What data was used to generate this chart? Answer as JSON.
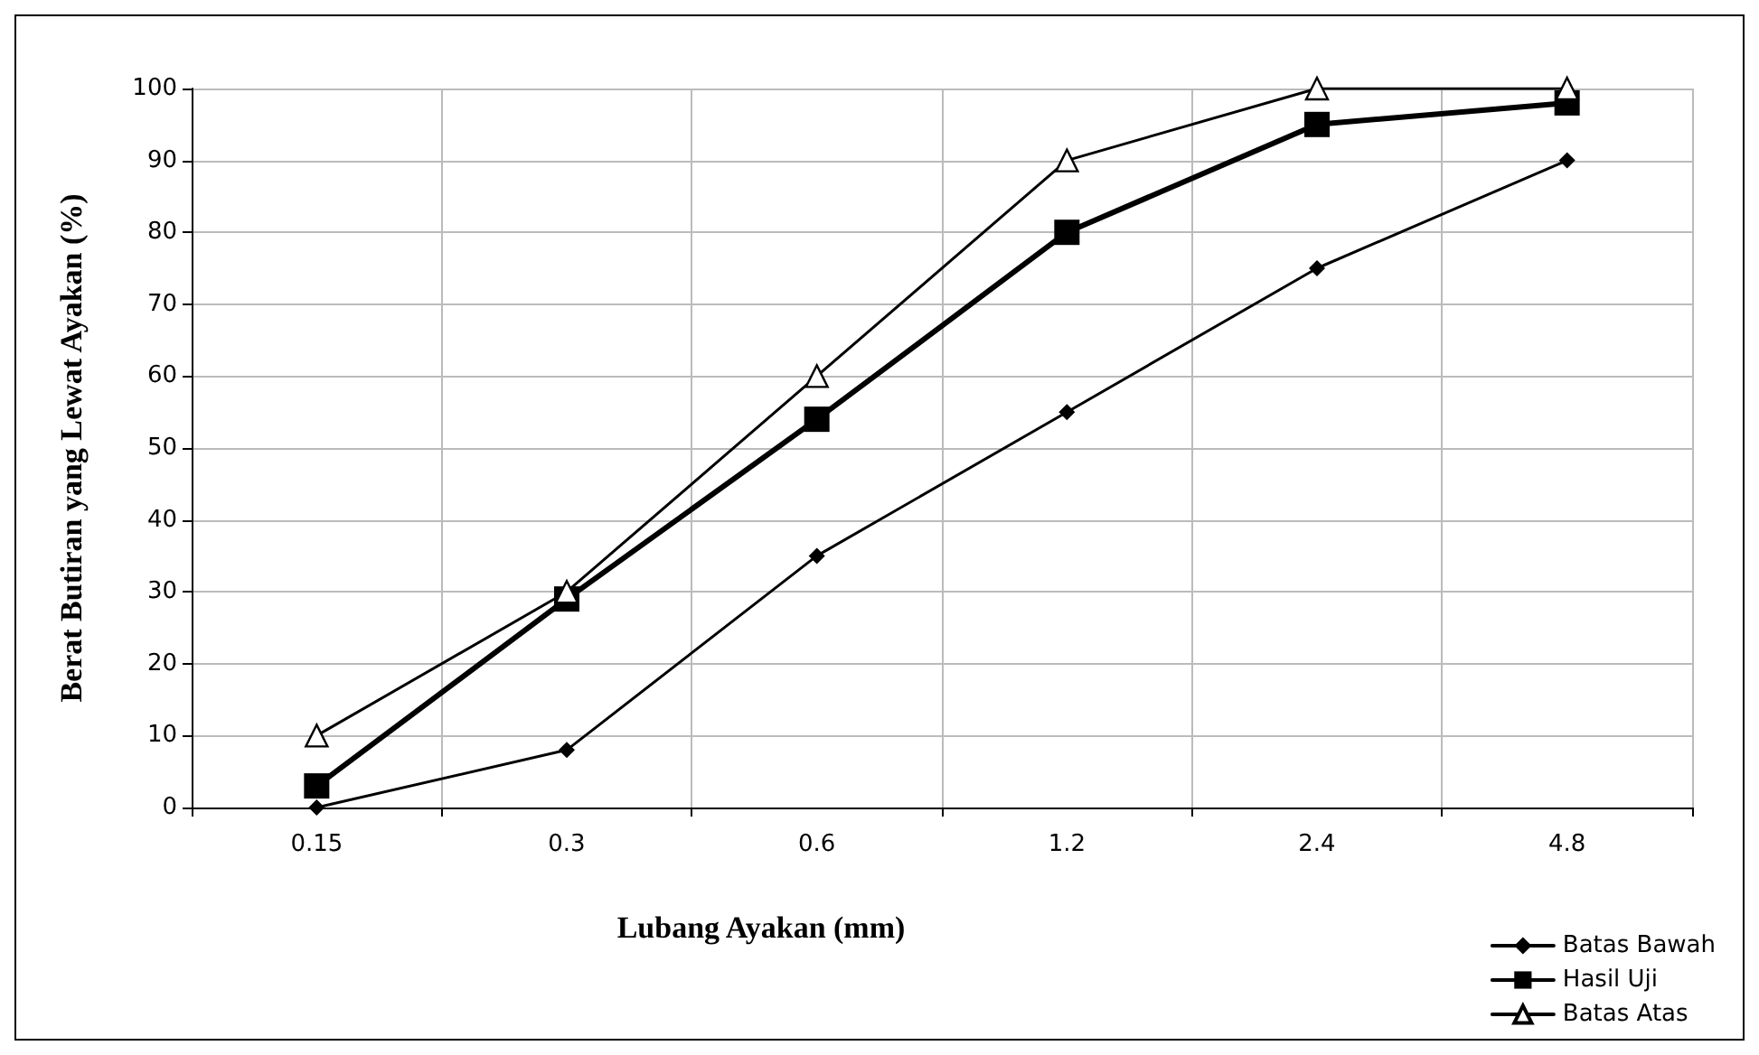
{
  "chart_data": {
    "type": "line",
    "xlabel": "Lubang Ayakan (mm)",
    "ylabel": "Berat Butiran yang Lewat Ayakan (%)",
    "categories": [
      "0.15",
      "0.3",
      "0.6",
      "1.2",
      "2.4",
      "4.8"
    ],
    "series": [
      {
        "name": "Batas Bawah",
        "color": "#000000",
        "marker": "diamond",
        "values": [
          0,
          8,
          35,
          55,
          75,
          90
        ]
      },
      {
        "name": "Hasil Uji",
        "color": "#000000",
        "marker": "square",
        "values": [
          3,
          29,
          54,
          80,
          95,
          98
        ]
      },
      {
        "name": "Batas Atas",
        "color": "#000000",
        "marker": "triangle",
        "values": [
          10,
          30,
          60,
          90,
          100,
          100
        ]
      }
    ],
    "ylim": [
      0,
      100
    ],
    "yticks": [
      0,
      10,
      20,
      30,
      40,
      50,
      60,
      70,
      80,
      90,
      100
    ],
    "grid": true,
    "legend": "bottom right"
  }
}
